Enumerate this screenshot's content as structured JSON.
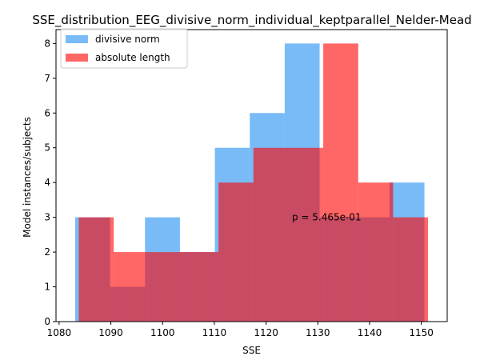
{
  "chart_data": {
    "type": "histogram",
    "title": "SSE_distribution_EEG_divisive_norm_individual_keptparallel_Nelder-Mead",
    "xlabel": "SSE",
    "ylabel": "Model instances/subjects",
    "xlim": [
      1079.4,
      1155.0
    ],
    "ylim": [
      0,
      8.4
    ],
    "xticks": [
      1080,
      1090,
      1100,
      1110,
      1120,
      1130,
      1140,
      1150
    ],
    "yticks": [
      0,
      1,
      2,
      3,
      4,
      5,
      6,
      7,
      8
    ],
    "grid": false,
    "legend_position": "upper-left",
    "series": [
      {
        "name": "divisive norm",
        "color": "#1f8ef1",
        "alpha": 0.6,
        "bin_edges": [
          1083.1,
          1089.85,
          1096.6,
          1103.35,
          1110.1,
          1116.85,
          1123.6,
          1130.35,
          1137.1,
          1143.85,
          1150.6
        ],
        "counts": [
          3,
          1,
          3,
          2,
          5,
          6,
          8,
          3,
          3,
          4
        ]
      },
      {
        "name": "absolute length",
        "color": "#ff0000",
        "alpha": 0.6,
        "bin_edges": [
          1083.8,
          1090.55,
          1097.3,
          1104.05,
          1110.8,
          1117.55,
          1124.3,
          1131.05,
          1137.8,
          1144.55,
          1151.3
        ],
        "counts": [
          3,
          2,
          2,
          2,
          4,
          5,
          5,
          8,
          4,
          3
        ]
      }
    ],
    "annotations": [
      {
        "text": "p = 5.465e-01",
        "x": 1125.0,
        "y": 3.0
      }
    ]
  }
}
